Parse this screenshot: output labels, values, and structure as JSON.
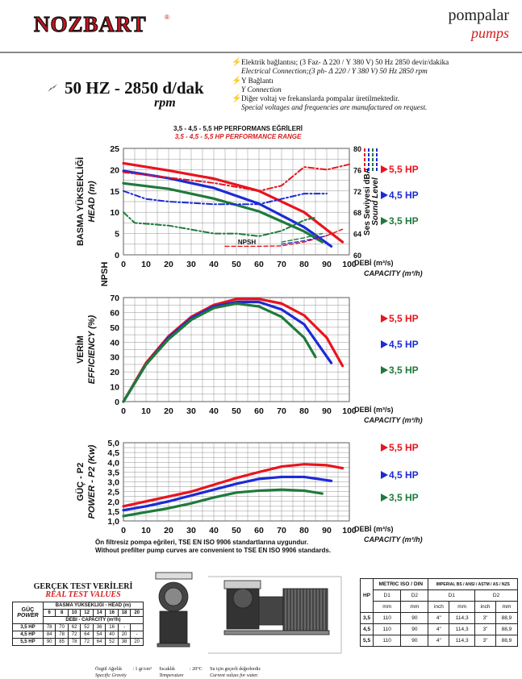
{
  "brand": {
    "logo": "NOZBART",
    "mark": "®"
  },
  "header_right": {
    "line1": "pompalar",
    "line2": "pumps"
  },
  "freq": {
    "main": "50 HZ - 2850 d/dak",
    "sub": "rpm"
  },
  "notes": [
    {
      "tr": "Elektrik bağlantısı; (3 Faz- Δ 220 / Y 380 V) 50 Hz 2850 devir/dakika",
      "en": "Electrical Connection;(3 ph- Δ 220 / Y 380 V) 50 Hz 2850 rpm"
    },
    {
      "tr": "Y Bağlantı",
      "en": "Y Connection"
    },
    {
      "tr": "Diğer voltaj ve frekanslarda pompalar üretilmektedir.",
      "en": "Special voltages and frequencies are manufactured on request."
    }
  ],
  "perf_title": {
    "tr": "3,5 - 4,5 - 5,5 HP PERFORMANS EĞRİLERİ",
    "en": "3,5 - 4,5 - 5,5 HP PERFORMANCE RANGE"
  },
  "colors": {
    "red": "#e8141e",
    "blue": "#1c2bd6",
    "green": "#1f7a3a"
  },
  "legend": [
    "5,5 HP",
    "4,5 HP",
    "3,5 HP"
  ],
  "x_axis": {
    "ticks": [
      "0",
      "10",
      "20",
      "30",
      "40",
      "50",
      "60",
      "70",
      "80",
      "90",
      "100"
    ],
    "label_tr": "DEBİ (m³/s)",
    "label_en": "CAPACITY (m³/h)"
  },
  "chart_data": [
    {
      "type": "line",
      "title": "",
      "ylabel_tr": "BASMA YÜKSEKLİĞİ",
      "ylabel_en": "HEAD (m)",
      "ylabel2": "NPSH",
      "y_ticks": [
        "0",
        "5",
        "10",
        "15",
        "20",
        "25"
      ],
      "ylim": [
        0,
        25
      ],
      "right_axis": {
        "label_tr": "Ses Seviyesi dBA",
        "label_en": "Sound Level",
        "ticks": [
          "60",
          "64",
          "68",
          "72",
          "76",
          "80"
        ],
        "ylim": [
          60,
          80
        ]
      },
      "npsh_label": "NPSH",
      "series": [
        {
          "name": "5,5 HP",
          "type": "head",
          "x": [
            0,
            20,
            40,
            60,
            80,
            97
          ],
          "y": [
            21.5,
            19.8,
            17.9,
            15.0,
            10.0,
            3.0
          ]
        },
        {
          "name": "4,5 HP",
          "type": "head",
          "x": [
            0,
            20,
            40,
            60,
            80,
            92
          ],
          "y": [
            19.7,
            18.0,
            15.7,
            12.0,
            6.5,
            2.0
          ]
        },
        {
          "name": "3,5 HP",
          "type": "head",
          "x": [
            0,
            20,
            40,
            60,
            80,
            88
          ],
          "y": [
            16.8,
            15.5,
            13.2,
            10.2,
            5.5,
            3.0
          ]
        },
        {
          "name": "5,5 HP",
          "type": "sound",
          "x": [
            0,
            20,
            40,
            60,
            70,
            80,
            90,
            100
          ],
          "y": [
            75.5,
            74.5,
            73.5,
            72.0,
            73.0,
            76.5,
            76.0,
            77.0
          ]
        },
        {
          "name": "4,5 HP",
          "type": "sound",
          "x": [
            0,
            10,
            20,
            40,
            60,
            70,
            80,
            90
          ],
          "y": [
            72.0,
            70.5,
            70.0,
            69.5,
            69.5,
            70.5,
            71.5,
            71.5
          ]
        },
        {
          "name": "3,5 HP",
          "type": "sound",
          "x": [
            0,
            5,
            20,
            40,
            50,
            60,
            70,
            80,
            85
          ],
          "y": [
            68.0,
            66.0,
            65.5,
            64.0,
            64.0,
            63.5,
            64.5,
            66.5,
            67.0
          ]
        },
        {
          "name": "5,5 HP",
          "type": "npsh",
          "x": [
            45,
            60,
            70,
            80,
            90,
            97
          ],
          "y": [
            2.0,
            2.0,
            2.1,
            3.0,
            4.5,
            6.0
          ]
        },
        {
          "name": "4,5 HP",
          "type": "npsh",
          "x": [
            70,
            80,
            90
          ],
          "y": [
            2.5,
            3.3,
            4.5
          ]
        },
        {
          "name": "3,5 HP",
          "type": "npsh",
          "x": [
            70,
            80,
            88
          ],
          "y": [
            3.0,
            4.0,
            5.0
          ]
        }
      ]
    },
    {
      "type": "line",
      "title": "",
      "ylabel_tr": "VERİM",
      "ylabel_en": "EFFICIENCY (%)",
      "y_ticks": [
        "0",
        "10",
        "20",
        "30",
        "40",
        "50",
        "60",
        "70"
      ],
      "ylim": [
        0,
        70
      ],
      "series": [
        {
          "name": "5,5 HP",
          "x": [
            0,
            10,
            20,
            30,
            40,
            50,
            60,
            70,
            80,
            90,
            97
          ],
          "y": [
            0,
            26,
            44,
            57,
            65,
            69,
            69,
            66,
            58,
            43,
            24
          ]
        },
        {
          "name": "4,5 HP",
          "x": [
            0,
            10,
            20,
            30,
            40,
            50,
            60,
            70,
            80,
            92
          ],
          "y": [
            0,
            25,
            43,
            56,
            64,
            67,
            67,
            62,
            52,
            26
          ]
        },
        {
          "name": "3,5 HP",
          "x": [
            0,
            10,
            20,
            30,
            40,
            50,
            60,
            70,
            80,
            85
          ],
          "y": [
            0,
            25,
            42,
            55,
            63,
            66,
            64,
            57,
            43,
            30
          ]
        }
      ]
    },
    {
      "type": "line",
      "title": "",
      "ylabel_tr": "GÜÇ - P2",
      "ylabel_en": "POWER - P2 (Kw)",
      "y_ticks": [
        "1,0",
        "1,5",
        "2,0",
        "2,5",
        "3,0",
        "3,5",
        "4,0",
        "4,5",
        "5,0"
      ],
      "ylim": [
        1.0,
        5.0
      ],
      "series": [
        {
          "name": "5,5 HP",
          "x": [
            0,
            10,
            20,
            30,
            40,
            50,
            60,
            70,
            80,
            90,
            97
          ],
          "y": [
            1.75,
            2.0,
            2.25,
            2.5,
            2.85,
            3.2,
            3.5,
            3.78,
            3.9,
            3.85,
            3.7
          ]
        },
        {
          "name": "4,5 HP",
          "x": [
            0,
            10,
            20,
            30,
            40,
            50,
            60,
            70,
            80,
            92
          ],
          "y": [
            1.55,
            1.75,
            2.0,
            2.3,
            2.6,
            2.9,
            3.15,
            3.25,
            3.25,
            3.05
          ]
        },
        {
          "name": "3,5 HP",
          "x": [
            0,
            10,
            20,
            30,
            40,
            50,
            60,
            70,
            80,
            88
          ],
          "y": [
            1.25,
            1.45,
            1.65,
            1.9,
            2.2,
            2.45,
            2.55,
            2.6,
            2.55,
            2.4
          ]
        }
      ]
    }
  ],
  "standard_note": {
    "tr": "Ön filtresiz pompa eğrileri, TSE EN ISO 9906 standartlarına uygundur.",
    "en": "Without prefilter pump curves are convenient to TSE EN ISO 9906 standards."
  },
  "test": {
    "title_tr": "GERÇEK TEST VERİLERİ",
    "title_en": "REAL TEST VALUES",
    "power_tr": "GÜÇ",
    "power_en": "POWER",
    "head_hdr": "BASMA YÜKSEKLİĞİ - HEAD (m)",
    "cap_hdr": "DEBİ - CAPACITY (m³/h)",
    "cap_cols": [
      "6",
      "8",
      "10",
      "12",
      "14",
      "16",
      "18",
      "20"
    ],
    "rows": [
      {
        "hp": "3,5 HP",
        "vals": [
          "78",
          "70",
          "62",
          "52",
          "36",
          "16",
          "-",
          ""
        ]
      },
      {
        "hp": "4,5 HP",
        "vals": [
          "84",
          "78",
          "72",
          "64",
          "54",
          "40",
          "20",
          "-"
        ]
      },
      {
        "hp": "5,5 HP",
        "vals": [
          "90",
          "85",
          "78",
          "72",
          "64",
          "52",
          "38",
          "20"
        ]
      }
    ]
  },
  "dims": {
    "hdr_metric": "METRIC ISO / DIN",
    "hdr_imperial": "IMPERIAL BS / ANSI / ASTM / AS / NZS",
    "hp": "HP",
    "d1": "D1",
    "d2": "D2",
    "mm": "mm",
    "inch": "inch",
    "rows": [
      {
        "hp": "3,5",
        "m_d1": "110",
        "m_d2": "90",
        "i_d1_inch": "4\"",
        "i_d1_mm": "114,3",
        "i_d2_inch": "3\"",
        "i_d2_mm": "88,9"
      },
      {
        "hp": "4,5",
        "m_d1": "110",
        "m_d2": "90",
        "i_d1_inch": "4\"",
        "i_d1_mm": "114,3",
        "i_d2_inch": "3\"",
        "i_d2_mm": "88,9"
      },
      {
        "hp": "5,5",
        "m_d1": "110",
        "m_d2": "90",
        "i_d1_inch": "4\"",
        "i_d1_mm": "114,3",
        "i_d2_inch": "3\"",
        "i_d2_mm": "88,9"
      }
    ]
  },
  "footer": {
    "gravity_tr": "Özgül Ağırlık",
    "gravity_en": "Specific Gravity",
    "gravity_val": ": 1 gr/cm³",
    "temp_tr": "Sıcaklık",
    "temp_en": "Temperature",
    "temp_val": ": 20°C",
    "current_tr": "Su için geçerli değerlerdir.",
    "current_en": "Current values for water."
  }
}
